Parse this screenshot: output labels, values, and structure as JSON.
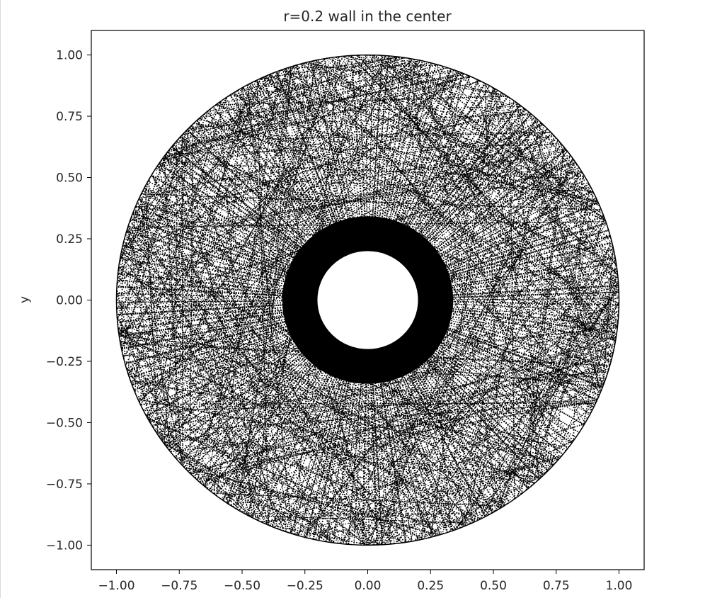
{
  "chart_data": {
    "type": "scatter",
    "title": "r=0.2 wall in the center",
    "xlabel": "",
    "ylabel": "y",
    "xlim": [
      -1.1,
      1.1
    ],
    "ylim": [
      -1.1,
      1.1
    ],
    "aspect": "equal",
    "grid": false,
    "legend": "none",
    "x_ticks": [
      -1.0,
      -0.75,
      -0.5,
      -0.25,
      0.0,
      0.25,
      0.5,
      0.75,
      1.0
    ],
    "x_tick_labels": [
      "−1.00",
      "−0.75",
      "−0.50",
      "−0.25",
      "0.00",
      "0.25",
      "0.50",
      "0.75",
      "1.00"
    ],
    "y_ticks": [
      1.0,
      0.75,
      0.5,
      0.25,
      0.0,
      -0.25,
      -0.5,
      -0.75,
      -1.0
    ],
    "y_tick_labels": [
      "1.00",
      "0.75",
      "0.50",
      "0.25",
      "0.00",
      "−0.25",
      "−0.50",
      "−0.75",
      "−1.00"
    ],
    "series": [
      {
        "marker": "dot",
        "color": "#000000",
        "region": "annulus between an inner wall circle and an outer unit circle, densely filled with radial dotted trajectories",
        "outer_radius": 1.0,
        "inner_wall_radius": 0.2
      }
    ],
    "colors": {
      "points": "#000000",
      "axes": "#000000",
      "text": "#262626",
      "background": "#ffffff"
    }
  }
}
